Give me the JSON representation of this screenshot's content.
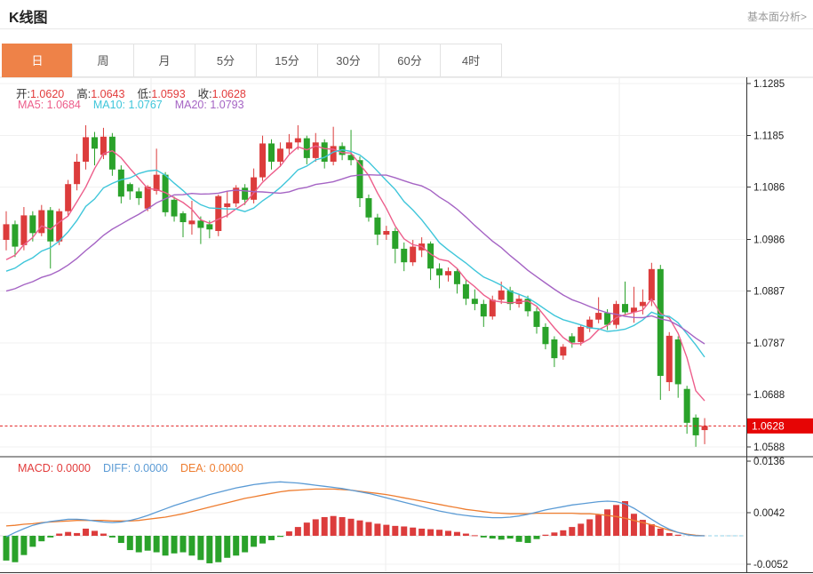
{
  "header": {
    "title": "K线图",
    "link_label": "基本面分析>"
  },
  "tabs": {
    "active_index": 0,
    "items": [
      {
        "id": "day",
        "label": "日"
      },
      {
        "id": "week",
        "label": "周"
      },
      {
        "id": "month",
        "label": "月"
      },
      {
        "id": "5min",
        "label": "5分"
      },
      {
        "id": "15min",
        "label": "15分"
      },
      {
        "id": "30min",
        "label": "30分"
      },
      {
        "id": "60min",
        "label": "60分"
      },
      {
        "id": "4hour",
        "label": "4时"
      }
    ]
  },
  "readouts": {
    "ohlc": [
      {
        "id": "open",
        "label": "开:",
        "value": "1.0620"
      },
      {
        "id": "high",
        "label": "高:",
        "value": "1.0643"
      },
      {
        "id": "low",
        "label": "低:",
        "value": "1.0593"
      },
      {
        "id": "close",
        "label": "收:",
        "value": "1.0628"
      }
    ],
    "ma": [
      {
        "id": "ma5",
        "label": "MA5:",
        "value": "1.0684",
        "color": "#ed5e8b"
      },
      {
        "id": "ma10",
        "label": "MA10:",
        "value": "1.0767",
        "color": "#3fc6da"
      },
      {
        "id": "ma20",
        "label": "MA20:",
        "value": "1.0793",
        "color": "#a564c4"
      }
    ],
    "macd": [
      {
        "id": "macd",
        "label": "MACD:",
        "value": "0.0000",
        "color": "#e23b3b"
      },
      {
        "id": "diff",
        "label": "DIFF:",
        "value": "0.0000",
        "color": "#5b9bd5"
      },
      {
        "id": "dea",
        "label": "DEA:",
        "value": "0.0000",
        "color": "#ee7d30"
      }
    ]
  },
  "colors": {
    "up": "#dc3c3c",
    "down": "#2aa22a",
    "ma5": "#ed5e8b",
    "ma10": "#3fc6da",
    "ma20": "#a564c4",
    "diff": "#5b9bd5",
    "dea": "#ee7d30",
    "tab_active_bg": "#ee8248",
    "price_line": "#e32222",
    "price_tag_bg": "#e60505",
    "price_tag_text": "#ffffff",
    "grid": "#f1f1f1",
    "vgrid": "#eeeeee",
    "frame_dark": "#333333",
    "frame_light": "#dddddd",
    "axis_text": "#222222",
    "zero_dash": "#d9d9d9",
    "zero_ext": "#8fd0e8"
  },
  "chart_data": {
    "type": "candlestick",
    "panels": [
      "price",
      "macd"
    ],
    "legend": [
      "MA5",
      "MA10",
      "MA20",
      "MACD",
      "DIFF",
      "DEA"
    ],
    "grid": true,
    "price_axis_ticks": [
      {
        "label": "1.1285",
        "value": 1.1285
      },
      {
        "label": "1.1185",
        "value": 1.1185
      },
      {
        "label": "1.1086",
        "value": 1.1086
      },
      {
        "label": "1.0986",
        "value": 1.0986
      },
      {
        "label": "1.0887",
        "value": 1.0887
      },
      {
        "label": "1.0787",
        "value": 1.0787
      },
      {
        "label": "1.0688",
        "value": 1.0688
      },
      {
        "label": "1.0588",
        "value": 1.0588
      }
    ],
    "macd_axis_ticks": [
      {
        "label": "0.0136",
        "value": 0.0136
      },
      {
        "label": "0.0042",
        "value": 0.0042
      },
      {
        "label": "-0.0052",
        "value": -0.0052
      }
    ],
    "last_price": {
      "label": "1.0628",
      "value": 1.0628
    },
    "ma_windows": [
      5,
      10,
      20
    ],
    "candles": [
      [
        1.0985,
        1.104,
        1.0965,
        1.1015
      ],
      [
        1.1015,
        1.1022,
        1.0952,
        1.0972
      ],
      [
        1.0975,
        1.1048,
        1.0965,
        1.1032
      ],
      [
        1.1032,
        1.104,
        1.0982,
        1.0998
      ],
      [
        1.0998,
        1.1052,
        1.0992,
        1.1042
      ],
      [
        1.1042,
        1.1048,
        1.093,
        1.0982
      ],
      [
        1.0982,
        1.1045,
        1.0975,
        1.104
      ],
      [
        1.104,
        1.11,
        1.1032,
        1.1092
      ],
      [
        1.1092,
        1.115,
        1.108,
        1.1135
      ],
      [
        1.1135,
        1.1205,
        1.112,
        1.1182
      ],
      [
        1.1182,
        1.1192,
        1.1128,
        1.116
      ],
      [
        1.1148,
        1.12,
        1.114,
        1.1183
      ],
      [
        1.1183,
        1.119,
        1.1108,
        1.112
      ],
      [
        1.112,
        1.1128,
        1.1055,
        1.1068
      ],
      [
        1.1092,
        1.1095,
        1.1062,
        1.1078
      ],
      [
        1.1078,
        1.1085,
        1.1052,
        1.1065
      ],
      [
        1.1045,
        1.109,
        1.104,
        1.1087
      ],
      [
        1.1079,
        1.116,
        1.1072,
        1.111
      ],
      [
        1.111,
        1.1115,
        1.103,
        1.1038
      ],
      [
        1.1062,
        1.1068,
        1.102,
        1.103
      ],
      [
        1.1036,
        1.104,
        1.099,
        1.1019
      ],
      [
        1.1015,
        1.106,
        1.0995,
        1.1022
      ],
      [
        1.1022,
        1.103,
        1.0977,
        1.1008
      ],
      [
        1.1015,
        1.1022,
        1.0988,
        1.1005
      ],
      [
        1.1002,
        1.1072,
        1.0992,
        1.1069
      ],
      [
        1.1048,
        1.1078,
        1.1028,
        1.1055
      ],
      [
        1.1055,
        1.109,
        1.1048,
        1.1085
      ],
      [
        1.1085,
        1.1092,
        1.1052,
        1.1062
      ],
      [
        1.1062,
        1.1122,
        1.1055,
        1.1105
      ],
      [
        1.1105,
        1.1185,
        1.1098,
        1.117
      ],
      [
        1.117,
        1.1178,
        1.112,
        1.1135
      ],
      [
        1.1135,
        1.1172,
        1.1125,
        1.116
      ],
      [
        1.116,
        1.1188,
        1.115,
        1.1172
      ],
      [
        1.1172,
        1.1205,
        1.1158,
        1.118
      ],
      [
        1.118,
        1.1185,
        1.113,
        1.1142
      ],
      [
        1.1142,
        1.119,
        1.1135,
        1.1172
      ],
      [
        1.1172,
        1.1178,
        1.1122,
        1.1135
      ],
      [
        1.1135,
        1.1202,
        1.1128,
        1.1165
      ],
      [
        1.1165,
        1.1172,
        1.1138,
        1.1148
      ],
      [
        1.1148,
        1.1196,
        1.1128,
        1.1138
      ],
      [
        1.1138,
        1.1145,
        1.1048,
        1.1065
      ],
      [
        1.1065,
        1.1072,
        1.102,
        1.1028
      ],
      [
        1.1028,
        1.1035,
        1.0975,
        1.0995
      ],
      [
        1.0995,
        1.1012,
        1.0985,
        1.1002
      ],
      [
        1.1002,
        1.1008,
        1.094,
        1.0968
      ],
      [
        1.0968,
        1.098,
        1.0925,
        1.0942
      ],
      [
        1.0942,
        1.0985,
        1.0935,
        1.0972
      ],
      [
        1.0965,
        1.099,
        1.0952,
        1.0978
      ],
      [
        1.0978,
        1.0982,
        1.0908,
        1.093
      ],
      [
        1.093,
        1.094,
        1.0892,
        1.0917
      ],
      [
        1.0917,
        1.0932,
        1.0905,
        1.0925
      ],
      [
        1.0925,
        1.093,
        1.0882,
        1.09
      ],
      [
        1.09,
        1.0908,
        1.086,
        1.0872
      ],
      [
        1.0872,
        1.089,
        1.085,
        1.0862
      ],
      [
        1.0862,
        1.087,
        1.0818,
        1.0838
      ],
      [
        1.0838,
        1.0878,
        1.0832,
        1.087
      ],
      [
        1.087,
        1.0905,
        1.0862,
        1.0888
      ],
      [
        1.0888,
        1.0895,
        1.085,
        1.0862
      ],
      [
        1.0862,
        1.088,
        1.0855,
        1.0872
      ],
      [
        1.0872,
        1.0878,
        1.0838,
        1.0848
      ],
      [
        1.0848,
        1.0855,
        1.0805,
        1.0818
      ],
      [
        1.0818,
        1.0825,
        1.0775,
        1.0785
      ],
      [
        1.0794,
        1.08,
        1.0741,
        1.0758
      ],
      [
        1.0763,
        1.0785,
        1.0755,
        1.078
      ],
      [
        1.08,
        1.0806,
        1.0778,
        1.0788
      ],
      [
        1.0789,
        1.0822,
        1.0782,
        1.0818
      ],
      [
        1.0815,
        1.0838,
        1.0808,
        1.0832
      ],
      [
        1.0832,
        1.0875,
        1.0825,
        1.0845
      ],
      [
        1.0845,
        1.0852,
        1.0812,
        1.0822
      ],
      [
        1.0822,
        1.0868,
        1.0815,
        1.0862
      ],
      [
        1.0862,
        1.0905,
        1.084,
        1.0846
      ],
      [
        1.0846,
        1.0895,
        1.0826,
        1.0855
      ],
      [
        1.0858,
        1.089,
        1.0842,
        1.0866
      ],
      [
        1.0869,
        1.0941,
        1.0858,
        1.0929
      ],
      [
        1.0929,
        1.0937,
        1.0678,
        1.0724
      ],
      [
        1.0712,
        1.0808,
        1.0695,
        1.0801
      ],
      [
        1.0794,
        1.08,
        1.0682,
        1.0708
      ],
      [
        1.0699,
        1.0705,
        1.0613,
        1.0634
      ],
      [
        1.0644,
        1.065,
        1.0588,
        1.061
      ],
      [
        1.062,
        1.0643,
        1.0593,
        1.0628
      ]
    ],
    "macd_hist": [
      -0.0045,
      -0.0048,
      -0.0035,
      -0.002,
      -0.001,
      -0.0003,
      0.0004,
      0.0007,
      0.0005,
      0.0013,
      0.0009,
      0.0004,
      -0.0003,
      -0.0013,
      -0.0026,
      -0.003,
      -0.0027,
      -0.003,
      -0.0036,
      -0.0032,
      -0.003,
      -0.0036,
      -0.0044,
      -0.005,
      -0.0048,
      -0.004,
      -0.0036,
      -0.003,
      -0.002,
      -0.0014,
      -0.0008,
      -0.0002,
      0.0008,
      0.0016,
      0.0024,
      0.003,
      0.0034,
      0.0036,
      0.0034,
      0.0031,
      0.0028,
      0.0025,
      0.0022,
      0.002,
      0.0018,
      0.0017,
      0.0015,
      0.0013,
      0.0012,
      0.0011,
      0.0009,
      0.0007,
      0.0004,
      0.0001,
      -0.0003,
      -0.0005,
      -0.0007,
      -0.0005,
      -0.0011,
      -0.0013,
      -0.0006,
      0.0002,
      0.0006,
      0.001,
      0.0016,
      0.0022,
      0.003,
      0.0038,
      0.0048,
      0.0056,
      0.0063,
      0.004,
      0.0029,
      0.0021,
      0.0013,
      0.0005,
      0.0002,
      0.0,
      0.0,
      0.0
    ],
    "diff_line": [
      -0.0002,
      0.0006,
      0.0013,
      0.0019,
      0.0023,
      0.0026,
      0.0028,
      0.003,
      0.003,
      0.0029,
      0.0027,
      0.0025,
      0.0024,
      0.0025,
      0.0028,
      0.0032,
      0.0037,
      0.0043,
      0.0049,
      0.0055,
      0.006,
      0.0065,
      0.007,
      0.0075,
      0.0079,
      0.0083,
      0.0087,
      0.009,
      0.0093,
      0.0095,
      0.0097,
      0.0098,
      0.0097,
      0.0096,
      0.0094,
      0.0092,
      0.009,
      0.0088,
      0.0086,
      0.0083,
      0.008,
      0.0077,
      0.0073,
      0.0069,
      0.0065,
      0.0061,
      0.0057,
      0.0053,
      0.0049,
      0.0045,
      0.0042,
      0.0039,
      0.0037,
      0.0035,
      0.0034,
      0.0033,
      0.0033,
      0.0034,
      0.0036,
      0.0039,
      0.0043,
      0.0047,
      0.005,
      0.0053,
      0.0056,
      0.0058,
      0.006,
      0.0062,
      0.0063,
      0.0062,
      0.0058,
      0.005,
      0.004,
      0.003,
      0.002,
      0.0012,
      0.0006,
      0.0002,
      0.0,
      0.0
    ],
    "dea_line": [
      0.0018,
      0.0019,
      0.0021,
      0.0022,
      0.0024,
      0.0025,
      0.0026,
      0.0027,
      0.0028,
      0.0028,
      0.0028,
      0.0028,
      0.0027,
      0.0027,
      0.0027,
      0.0028,
      0.003,
      0.0032,
      0.0034,
      0.0037,
      0.004,
      0.0044,
      0.0048,
      0.0052,
      0.0056,
      0.006,
      0.0064,
      0.0068,
      0.0071,
      0.0074,
      0.0077,
      0.008,
      0.0082,
      0.0083,
      0.0084,
      0.0085,
      0.0085,
      0.0085,
      0.0084,
      0.0083,
      0.0081,
      0.0079,
      0.0077,
      0.0075,
      0.0072,
      0.0069,
      0.0066,
      0.0063,
      0.006,
      0.0057,
      0.0054,
      0.0051,
      0.0048,
      0.0046,
      0.0044,
      0.0042,
      0.0041,
      0.004,
      0.004,
      0.004,
      0.0041,
      0.0041,
      0.0041,
      0.0041,
      0.0041,
      0.004,
      0.004,
      0.0039,
      0.0037,
      0.0035,
      0.0032,
      0.0028,
      0.0024,
      0.002,
      0.0015,
      0.001,
      0.0006,
      0.0003,
      0.0001,
      0.0
    ]
  }
}
